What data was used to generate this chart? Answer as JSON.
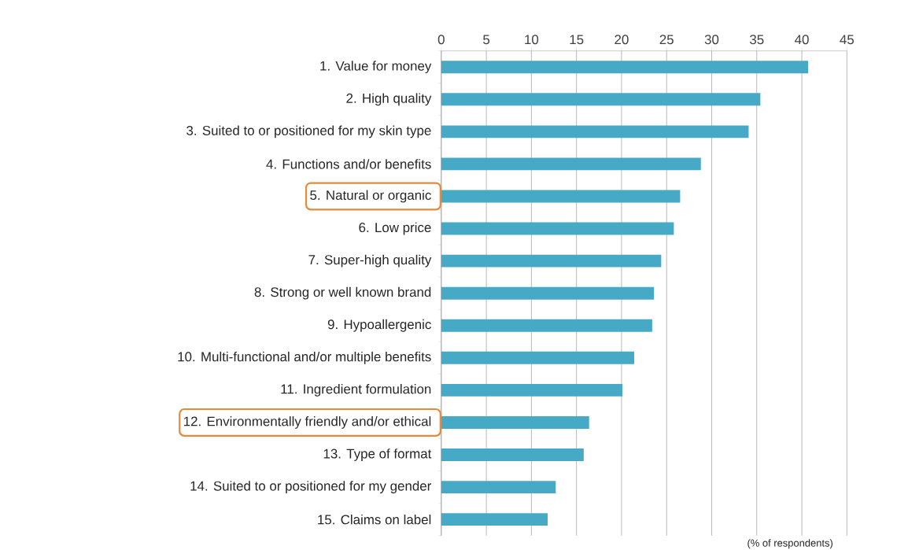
{
  "chart_data": {
    "type": "bar",
    "orientation": "horizontal",
    "categories": [
      "1. Value for money",
      "2. High quality",
      "3. Suited to or positioned for my skin type",
      "4. Functions and/or benefits",
      "5. Natural or organic",
      "6. Low price",
      "7. Super-high quality",
      "8. Strong or well known brand",
      "9. Hypoallergenic",
      "10. Multi-functional and/or multiple benefits",
      "11. Ingredient formulation",
      "12. Environmentally friendly and/or ethical",
      "13. Type of format",
      "14. Suited to or positioned for my gender",
      "15. Claims on label"
    ],
    "values": [
      40.7,
      35.4,
      34.1,
      28.8,
      26.5,
      25.8,
      24.4,
      23.6,
      23.4,
      21.4,
      20.1,
      16.4,
      15.8,
      12.7,
      11.8
    ],
    "color": "#46a9c6",
    "xlim": [
      0,
      45
    ],
    "xticks": [
      0,
      5,
      10,
      15,
      20,
      25,
      30,
      35,
      40,
      45
    ],
    "grid": "x",
    "xlabel": "(% of respondents)"
  }
}
